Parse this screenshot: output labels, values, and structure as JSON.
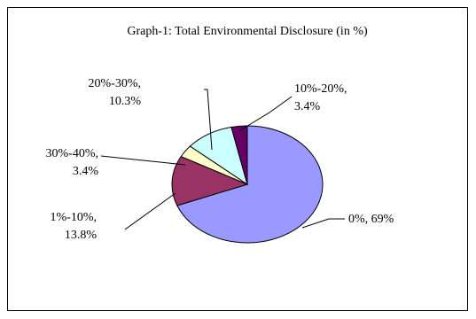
{
  "chart_data": {
    "type": "pie",
    "title": "Graph-1: Total Environmental Disclosure (in %)",
    "slices": [
      {
        "category": "0%",
        "value": 69,
        "value_label": "69%",
        "color": "#9999ff"
      },
      {
        "category": "1%-10%",
        "value": 13.8,
        "value_label": "13.8%",
        "color": "#993366"
      },
      {
        "category": "30%-40%",
        "value": 3.4,
        "value_label": "3.4%",
        "color": "#ffffcc"
      },
      {
        "category": "20%-30%",
        "value": 10.3,
        "value_label": "10.3%",
        "color": "#ccffff"
      },
      {
        "category": "10%-20%",
        "value": 3.4,
        "value_label": "3.4%",
        "color": "#660066"
      }
    ]
  }
}
